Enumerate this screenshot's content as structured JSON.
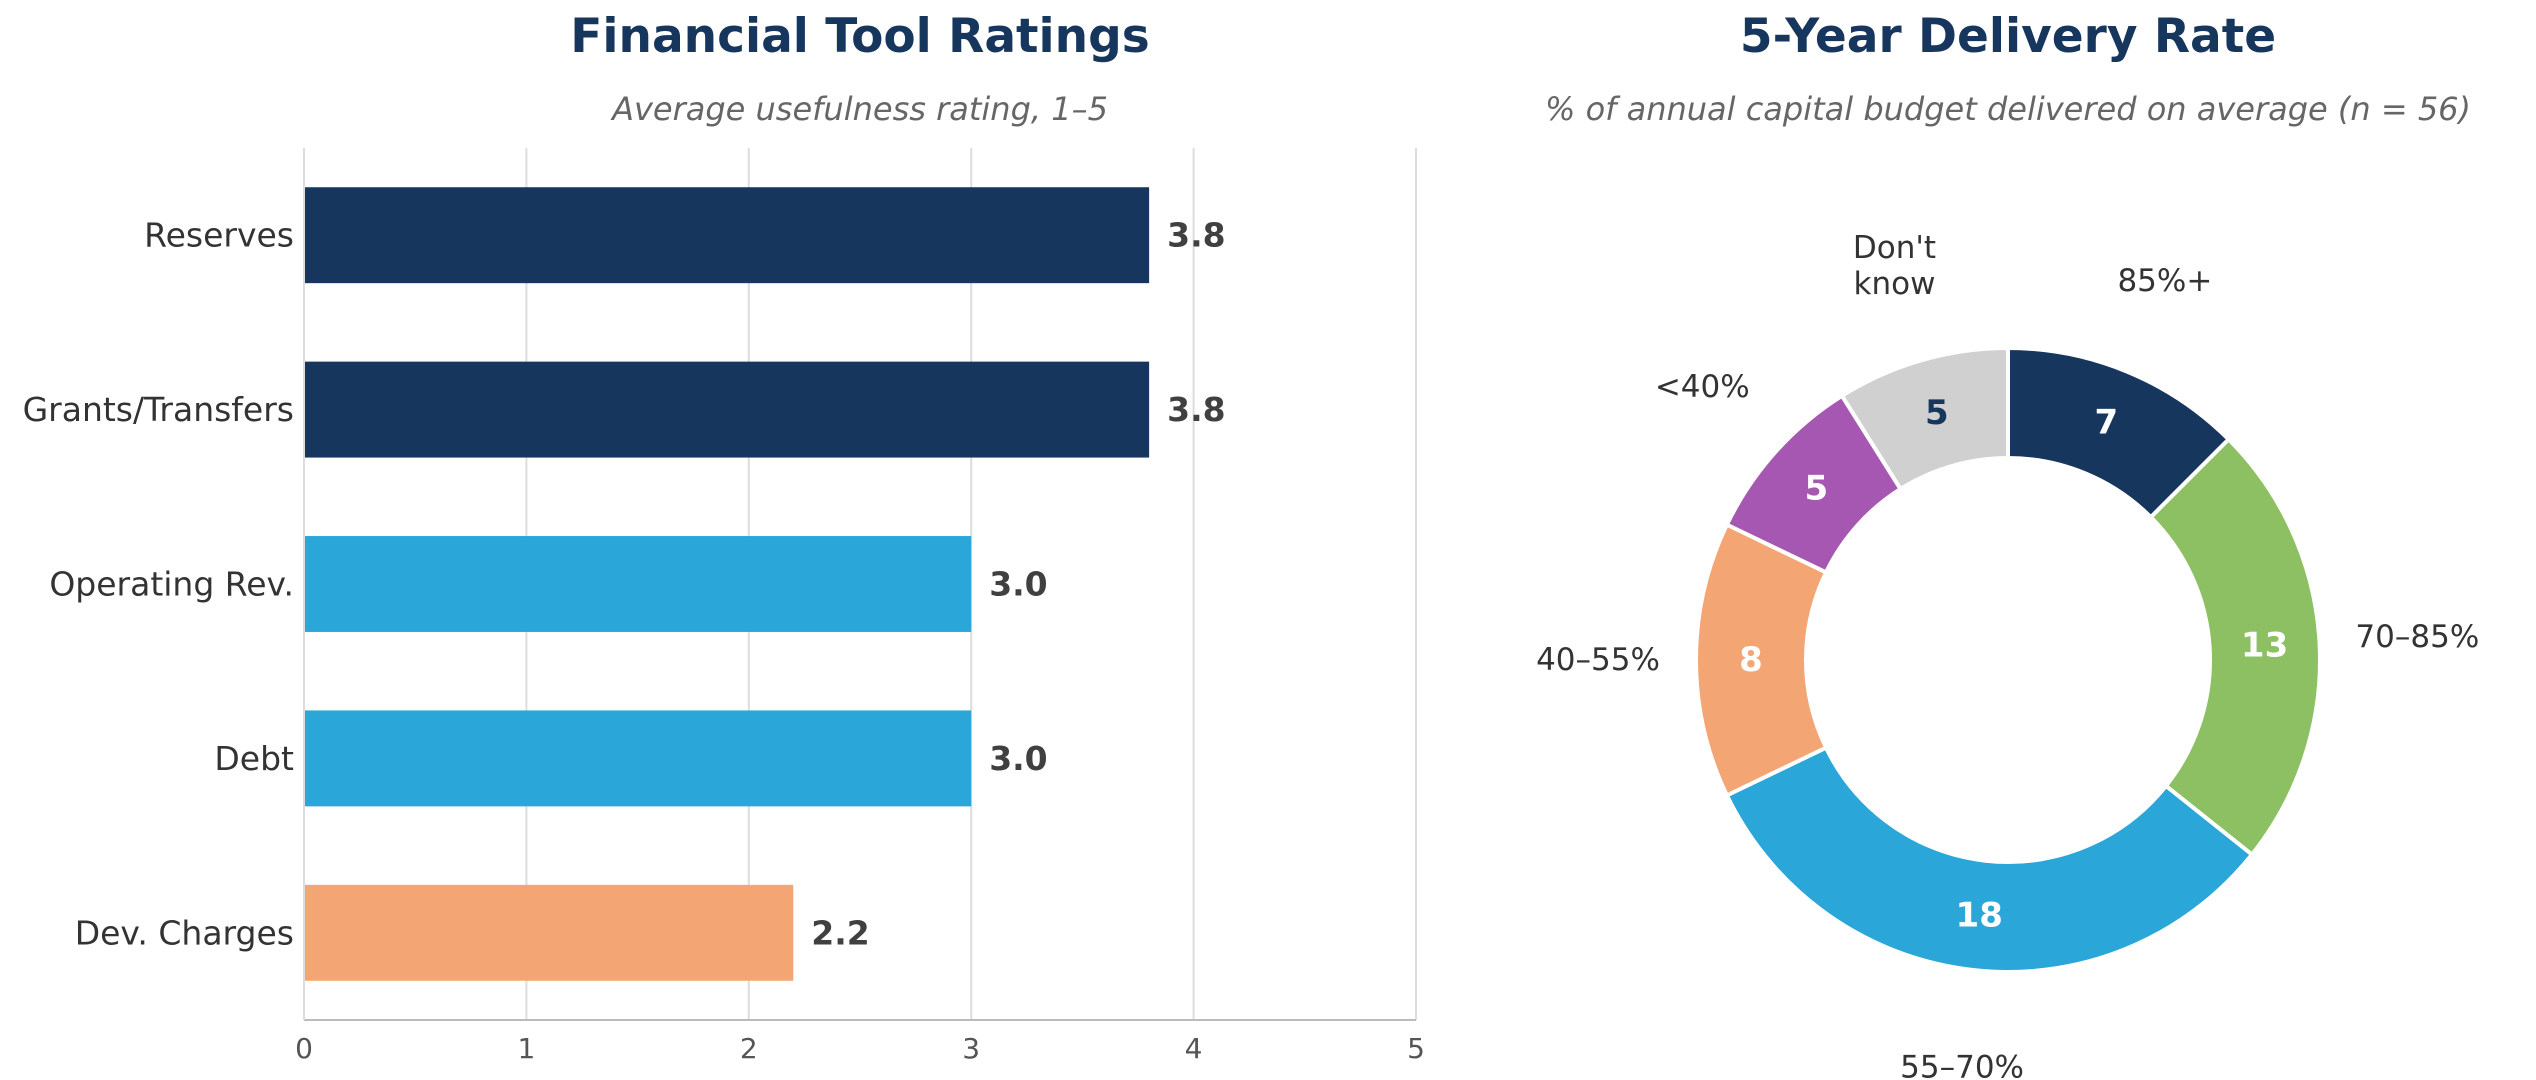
{
  "chart_data": [
    {
      "type": "bar",
      "orientation": "horizontal",
      "title": "Financial Tool Ratings",
      "subtitle": "Average usefulness rating, 1–5",
      "categories": [
        "Reserves",
        "Grants/Transfers",
        "Operating Rev.",
        "Debt",
        "Dev. Charges"
      ],
      "values": [
        3.8,
        3.8,
        3.0,
        3.0,
        2.2
      ],
      "value_labels": [
        "3.8",
        "3.8",
        "3.0",
        "3.0",
        "2.2"
      ],
      "colors": [
        "#17365d",
        "#17365d",
        "#2ba6d8",
        "#2ba6d8",
        "#f4a574"
      ],
      "xlim": [
        0,
        5
      ],
      "xticks": [
        0,
        1,
        2,
        3,
        4,
        5
      ],
      "xtick_labels": [
        "0",
        "1",
        "2",
        "3",
        "4",
        "5"
      ],
      "grid": "vertical"
    },
    {
      "type": "pie",
      "style": "donut",
      "title": "5-Year Delivery Rate",
      "subtitle": "% of annual capital budget delivered on average  (n = 56)",
      "slices": [
        {
          "label": "85%+",
          "value": 7,
          "value_label": "7",
          "color": "#17365d",
          "text_color": "#ffffff"
        },
        {
          "label": "70–85%",
          "value": 13,
          "value_label": "13",
          "color": "#8cc063",
          "text_color": "#ffffff"
        },
        {
          "label": "55–70%",
          "value": 18,
          "value_label": "18",
          "color": "#2ba6d8",
          "text_color": "#ffffff"
        },
        {
          "label": "40–55%",
          "value": 8,
          "value_label": "8",
          "color": "#f4a574",
          "text_color": "#ffffff"
        },
        {
          "label": "<40%",
          "value": 5,
          "value_label": "5",
          "color": "#a657b1",
          "text_color": "#ffffff"
        },
        {
          "label": "Don't know",
          "label_lines": [
            "Don't",
            "know"
          ],
          "value": 5,
          "value_label": "5",
          "color": "#d0d0d0",
          "text_color": "#17365d"
        }
      ],
      "start": "top",
      "direction": "clockwise"
    }
  ],
  "colors": {
    "title": "#17365d",
    "subtitle": "#666666",
    "label": "#333333",
    "value_label": "#404040",
    "grid": "#dddddd",
    "axis": "#bbbbbb"
  }
}
